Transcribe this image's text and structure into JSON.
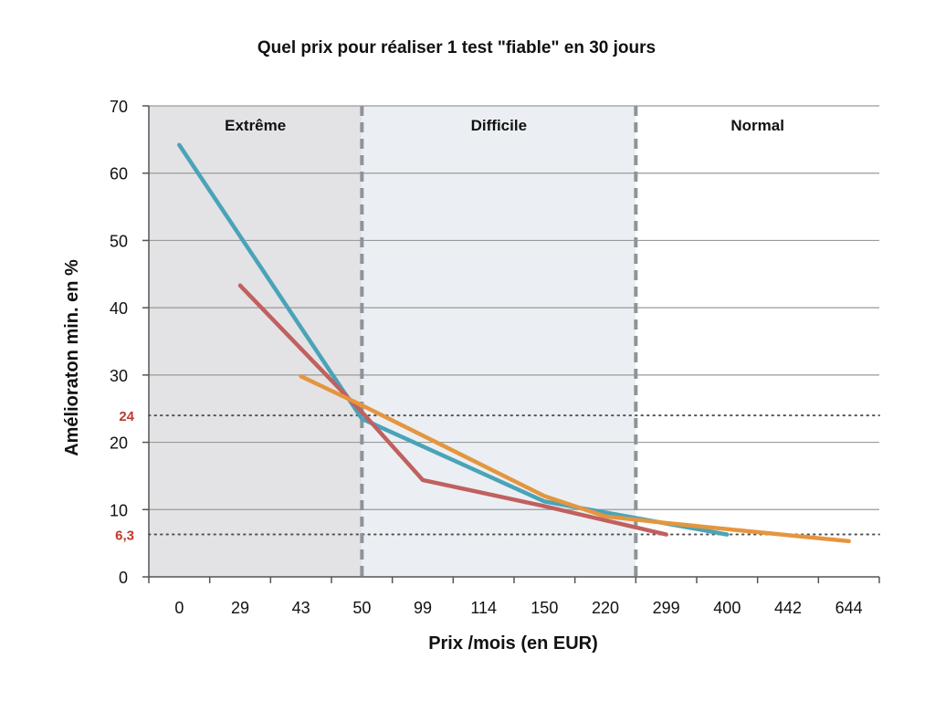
{
  "chart_data": {
    "type": "line",
    "title": "Quel prix pour réaliser 1 test \"fiable\" en 30 jours",
    "xlabel": "Prix /mois (en EUR)",
    "ylabel": "Amélioraton min. en %",
    "categories": [
      "0",
      "29",
      "43",
      "50",
      "99",
      "114",
      "150",
      "220",
      "299",
      "400",
      "442",
      "644"
    ],
    "ylim": [
      0,
      70
    ],
    "yticks": [
      0,
      10,
      20,
      30,
      40,
      50,
      60,
      70
    ],
    "grid": "horizontal",
    "series": [
      {
        "color": "#4BA3B8",
        "values": [
          64.2,
          null,
          null,
          23.5,
          null,
          null,
          11.2,
          null,
          null,
          6.3,
          null,
          null
        ]
      },
      {
        "color": "#C0605F",
        "values": [
          null,
          43.3,
          null,
          24.5,
          14.4,
          null,
          10.5,
          null,
          6.3,
          null,
          null,
          null
        ]
      },
      {
        "color": "#E4963F",
        "values": [
          null,
          null,
          29.8,
          25.5,
          null,
          null,
          12.0,
          9.0,
          8.0,
          null,
          null,
          5.3
        ]
      }
    ],
    "zones": [
      {
        "label": "Extrême",
        "from": -0.5,
        "to": 3.0,
        "color": "#E3E3E5"
      },
      {
        "label": "Difficile",
        "from": 3.0,
        "to": 7.5,
        "color": "#EBEFF3"
      },
      {
        "label": "Normal",
        "from": 7.5,
        "to": 11.5,
        "color": "#FFFFFF"
      }
    ],
    "reference_lines": [
      {
        "value": 24,
        "label": "24",
        "color": "#C0392B"
      },
      {
        "value": 6.3,
        "label": "6,3",
        "color": "#C0392B"
      }
    ]
  }
}
